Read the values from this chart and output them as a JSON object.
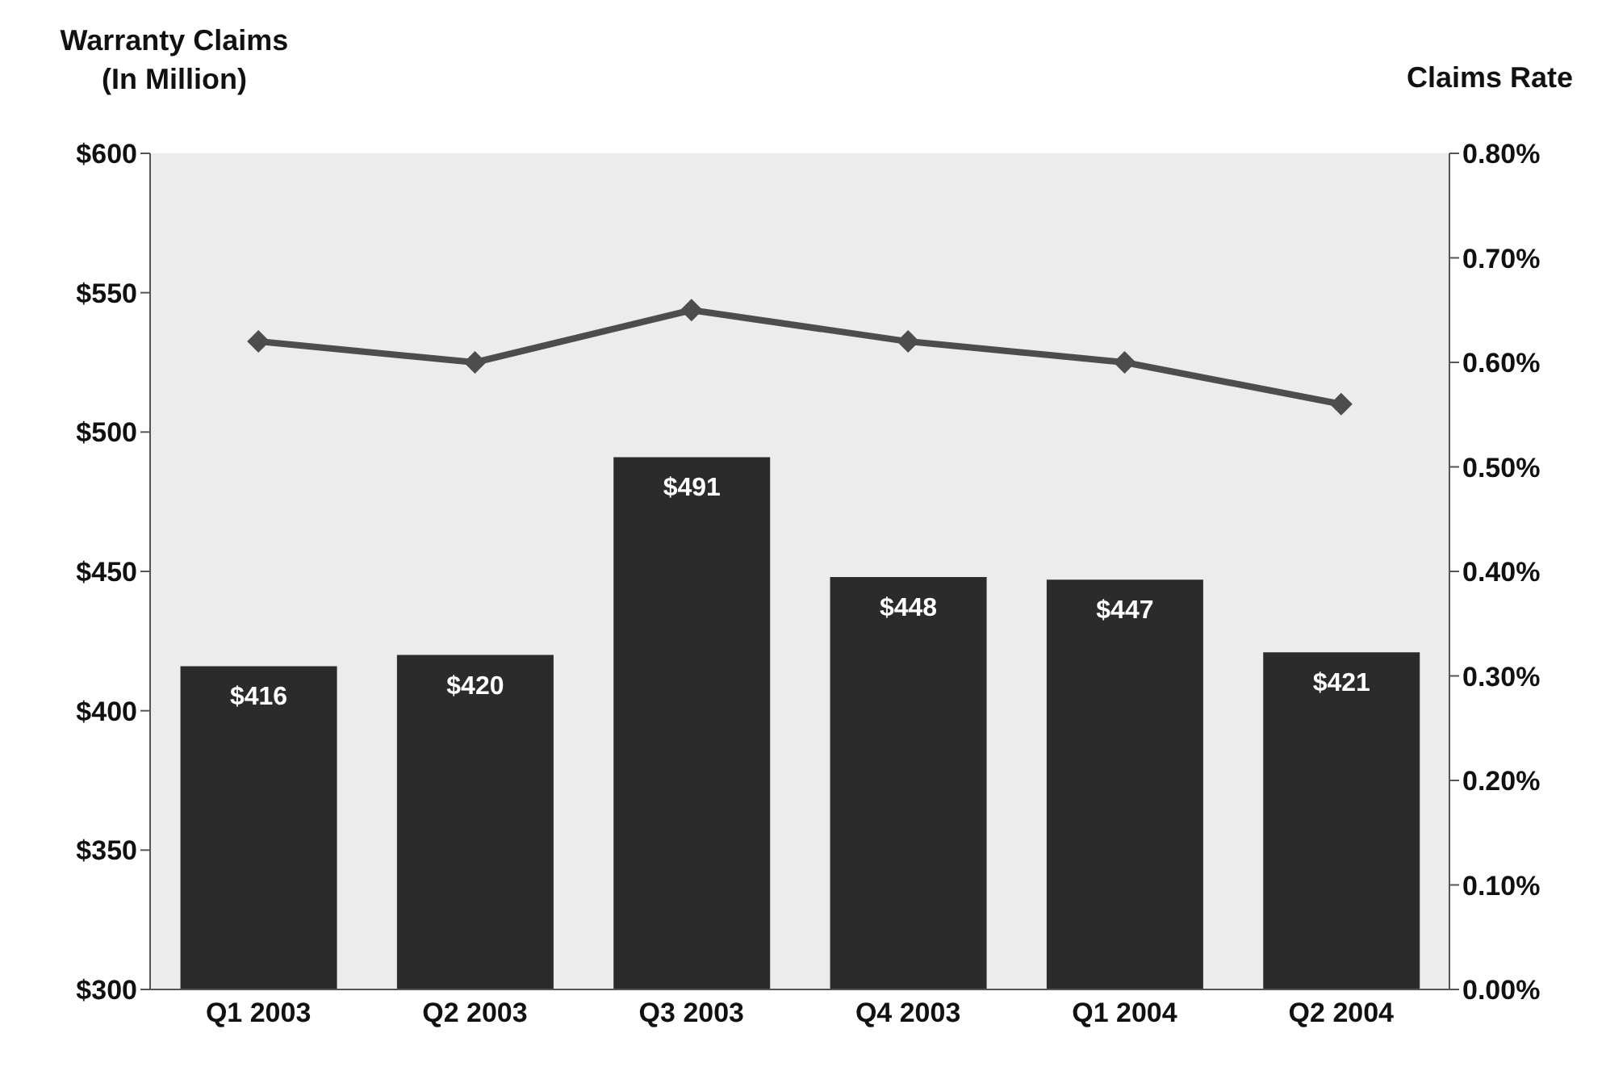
{
  "chart_data": {
    "type": "bar",
    "ylabel": "Warranty Claims\n(In Million)",
    "y2label": "Claims Rate",
    "categories": [
      "Q1 2003",
      "Q2 2003",
      "Q3 2003",
      "Q4 2003",
      "Q1 2004",
      "Q2 2004"
    ],
    "series": [
      {
        "color": "#2b2b2b",
        "values": [
          416,
          420,
          491,
          448,
          447,
          421
        ],
        "value_labels": [
          "$416",
          "$420",
          "$491",
          "$448",
          "$447",
          "$421"
        ]
      },
      {
        "type": "line",
        "axis": "y2",
        "color": "#4d4d4d",
        "marker": "diamond",
        "values": [
          0.62,
          0.6,
          0.65,
          0.62,
          0.6,
          0.56
        ]
      }
    ],
    "ylim": [
      300,
      600
    ],
    "yticks": [
      {
        "value": 300,
        "label": "$300"
      },
      {
        "value": 350,
        "label": "$350"
      },
      {
        "value": 400,
        "label": "$400"
      },
      {
        "value": 450,
        "label": "$450"
      },
      {
        "value": 500,
        "label": "$500"
      },
      {
        "value": 550,
        "label": "$550"
      },
      {
        "value": 600,
        "label": "$600"
      }
    ],
    "y2lim": [
      0,
      0.8
    ],
    "y2ticks": [
      {
        "value": 0,
        "label": "0.00%"
      },
      {
        "value": 0.1,
        "label": "0.10%"
      },
      {
        "value": 0.2,
        "label": "0.20%"
      },
      {
        "value": 0.3,
        "label": "0.30%"
      },
      {
        "value": 0.4,
        "label": "0.40%"
      },
      {
        "value": 0.5,
        "label": "0.50%"
      },
      {
        "value": 0.6,
        "label": "0.60%"
      },
      {
        "value": 0.7,
        "label": "0.70%"
      },
      {
        "value": 0.8,
        "label": "0.80%"
      }
    ],
    "grid": false,
    "legend": false
  }
}
